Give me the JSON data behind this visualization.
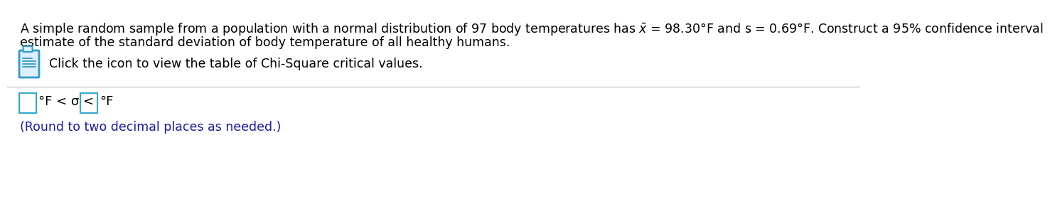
{
  "line1": "A simple random sample from a population with a normal distribution of 97 body temperatures has $\\bar{x}$ = 98.30°F and s = 0.69°F. Construct a 95% confidence interval",
  "line2": "estimate of the standard deviation of body temperature of all healthy humans.",
  "icon_text": "Click the icon to view the table of Chi-Square critical values.",
  "formula_mid": "°F < σ <",
  "formula_end": "°F",
  "round_text": "(Round to two decimal places as needed.)",
  "text_color": "#000000",
  "blue_color": "#1a1aaa",
  "icon_color": "#3399cc",
  "box_stroke_color": "#33aacc",
  "separator_color": "#bbbbbb",
  "background": "#ffffff",
  "main_fontsize": 12.5,
  "icon_fontsize": 12.5,
  "formula_fontsize": 13.0,
  "round_fontsize": 12.5
}
